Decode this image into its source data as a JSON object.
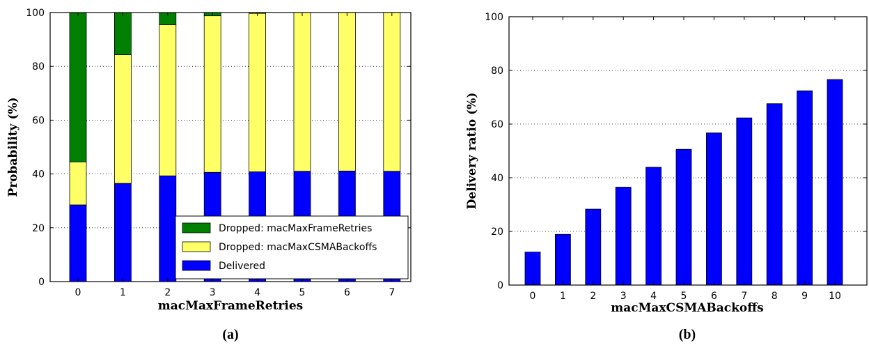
{
  "chart_data": [
    {
      "type": "bar",
      "stacked": true,
      "xlabel": "macMaxFrameRetries",
      "ylabel": "Probability (%)",
      "caption": "(a)",
      "categories": [
        "0",
        "1",
        "2",
        "3",
        "4",
        "5",
        "6",
        "7"
      ],
      "ylim": [
        0,
        100
      ],
      "yticks": [
        0,
        20,
        40,
        60,
        80,
        100
      ],
      "grid": "horizontal-dotted",
      "legend_position": "lower-right",
      "series": [
        {
          "name": "Delivered",
          "color": "#0000ff",
          "values": [
            28.5,
            36.5,
            39.3,
            40.6,
            40.8,
            41.0,
            41.1,
            41.0
          ]
        },
        {
          "name": "Dropped: macMaxCSMABackoffs",
          "color": "#ffff66",
          "values": [
            16.0,
            47.8,
            56.2,
            58.2,
            58.9,
            59.0,
            58.9,
            59.0
          ]
        },
        {
          "name": "Dropped: macMaxFrameRetries",
          "color": "#008000",
          "values": [
            55.5,
            15.7,
            4.5,
            1.2,
            0.3,
            0.0,
            0.0,
            0.0
          ]
        }
      ],
      "legend_order": [
        "Dropped: macMaxFrameRetries",
        "Dropped: macMaxCSMABackoffs",
        "Delivered"
      ]
    },
    {
      "type": "bar",
      "xlabel": "macMaxCSMABackoffs",
      "ylabel": "Delivery ratio (%)",
      "caption": "(b)",
      "categories": [
        "0",
        "1",
        "2",
        "3",
        "4",
        "5",
        "6",
        "7",
        "8",
        "9",
        "10"
      ],
      "ylim": [
        0,
        100
      ],
      "yticks": [
        0,
        20,
        40,
        60,
        80,
        100
      ],
      "grid": "horizontal-dotted",
      "color": "#0000ff",
      "values": [
        12.3,
        18.9,
        28.3,
        36.5,
        43.9,
        50.6,
        56.7,
        62.3,
        67.6,
        72.4,
        76.6
      ]
    }
  ]
}
